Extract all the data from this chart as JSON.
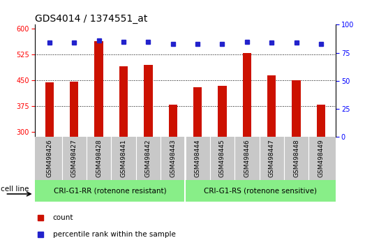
{
  "title": "GDS4014 / 1374551_at",
  "categories": [
    "GSM498426",
    "GSM498427",
    "GSM498428",
    "GSM498441",
    "GSM498442",
    "GSM498443",
    "GSM498444",
    "GSM498445",
    "GSM498446",
    "GSM498447",
    "GSM498448",
    "GSM498449"
  ],
  "bar_values": [
    445,
    447,
    565,
    490,
    495,
    380,
    430,
    435,
    530,
    465,
    450,
    380
  ],
  "percentile_values": [
    84,
    84,
    86,
    85,
    85,
    83,
    83,
    83,
    85,
    84,
    84,
    83
  ],
  "bar_color": "#cc1100",
  "dot_color": "#2222cc",
  "ylim_left": [
    285,
    612
  ],
  "ylim_right": [
    0,
    100
  ],
  "yticks_left": [
    300,
    375,
    450,
    525,
    600
  ],
  "yticks_right": [
    0,
    25,
    50,
    75,
    100
  ],
  "grid_values": [
    375,
    450,
    525
  ],
  "group1_label": "CRI-G1-RR (rotenone resistant)",
  "group2_label": "CRI-G1-RS (rotenone sensitive)",
  "group1_count": 6,
  "group2_count": 6,
  "cell_line_label": "cell line",
  "legend_count_label": "count",
  "legend_pct_label": "percentile rank within the sample",
  "group_color": "#88ee88",
  "tick_area_color": "#c8c8c8",
  "bar_width": 0.35,
  "title_fontsize": 10,
  "tick_fontsize": 7,
  "legend_fontsize": 7.5
}
